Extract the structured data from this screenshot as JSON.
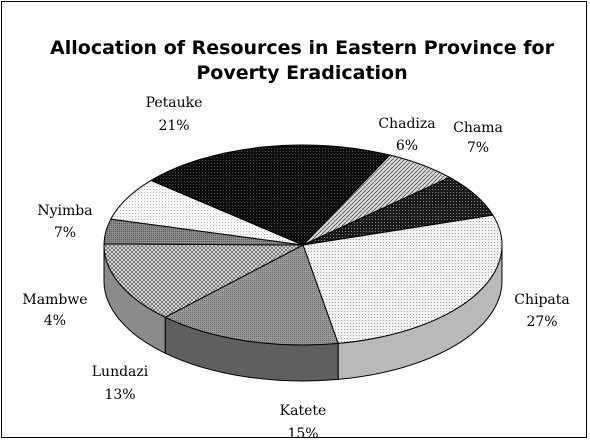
{
  "chart_data": {
    "type": "pie",
    "title_line1": "Allocation of Resources in Eastern Province for",
    "title_line2": "Poverty Eradication",
    "slices": [
      {
        "name": "Chadiza",
        "percent_label": "6%",
        "value": 6,
        "pattern": "hatch-light"
      },
      {
        "name": "Chama",
        "percent_label": "7%",
        "value": 7,
        "pattern": "dark"
      },
      {
        "name": "Chipata",
        "percent_label": "27%",
        "value": 27,
        "pattern": "dots-fine"
      },
      {
        "name": "Katete",
        "percent_label": "15%",
        "value": 15,
        "pattern": "grey"
      },
      {
        "name": "Lundazi",
        "percent_label": "13%",
        "value": 13,
        "pattern": "checker"
      },
      {
        "name": "Mambwe",
        "percent_label": "4%",
        "value": 4,
        "pattern": "grey-dark"
      },
      {
        "name": "Nyimba",
        "percent_label": "7%",
        "value": 7,
        "pattern": "dots-light"
      },
      {
        "name": "Petauke",
        "percent_label": "21%",
        "value": 21,
        "pattern": "black"
      }
    ],
    "style": "3d-pie"
  }
}
